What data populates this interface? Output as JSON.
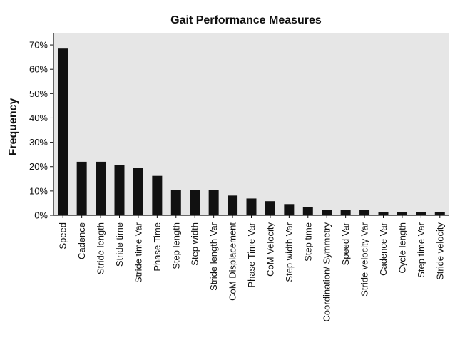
{
  "chart_data": {
    "type": "bar",
    "title": "Gait Performance Measures",
    "xlabel": "",
    "ylabel": "Frequency",
    "ylim": [
      0,
      0.75
    ],
    "yticks": [
      0,
      0.1,
      0.2,
      0.3,
      0.4,
      0.5,
      0.6,
      0.7
    ],
    "ytick_labels": [
      "0%",
      "10%",
      "20%",
      "30%",
      "40%",
      "50%",
      "60%",
      "70%"
    ],
    "grid": false,
    "bar_color": "#111111",
    "plot_background": "#e6e6e6",
    "categories": [
      "Speed",
      "Cadence",
      "Stride length",
      "Stride time",
      "Stride time Var",
      "Phase  Time",
      "Step length",
      "Step width",
      "Stride length Var",
      "CoM Displacement",
      "Phase Time Var",
      "CoM Velocity",
      "Step width Var",
      "Step time",
      "Coordination/ Symmetry",
      "Speed Var",
      "Stride velocity Var",
      "Cadence Var",
      "Cycle length",
      "Step time Var",
      "Stride velocity"
    ],
    "values": [
      0.685,
      0.22,
      0.22,
      0.208,
      0.196,
      0.162,
      0.104,
      0.104,
      0.104,
      0.081,
      0.069,
      0.058,
      0.046,
      0.035,
      0.023,
      0.023,
      0.023,
      0.012,
      0.012,
      0.012,
      0.012
    ]
  }
}
